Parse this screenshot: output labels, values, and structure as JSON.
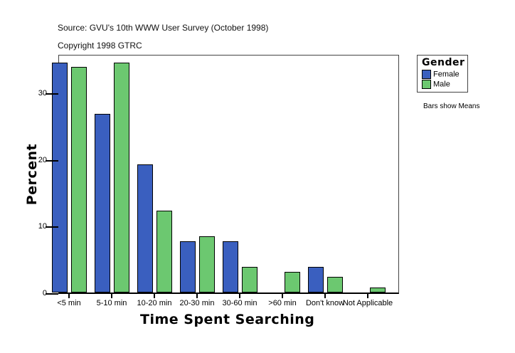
{
  "header": {
    "source": "Source: GVU's 10th WWW User Survey (October 1998)",
    "copyright": "Copyright 1998 GTRC"
  },
  "legend": {
    "title": "Gender",
    "items": [
      {
        "label": "Female",
        "color": "#3a5fbf"
      },
      {
        "label": "Male",
        "color": "#6cc870"
      }
    ]
  },
  "note": "Bars show Means",
  "axes": {
    "xlabel": "Time Spent Searching",
    "ylabel": "Percent",
    "yticks": [
      "0",
      "10",
      "20",
      "30"
    ]
  },
  "chart_data": {
    "type": "bar",
    "title": "",
    "xlabel": "Time Spent Searching",
    "ylabel": "Percent",
    "ylim": [
      0,
      35.8
    ],
    "categories": [
      "<5 min",
      "5-10 min",
      "10-20 min",
      "20-30 min",
      "30-60 min",
      ">60 min",
      "Don't know",
      "Not Applicable"
    ],
    "series": [
      {
        "name": "Female",
        "color": "#3a5fbf",
        "values": [
          34.5,
          26.8,
          19.2,
          7.7,
          7.7,
          0,
          3.8,
          0
        ]
      },
      {
        "name": "Male",
        "color": "#6cc870",
        "values": [
          33.8,
          34.5,
          12.3,
          8.4,
          3.8,
          3.1,
          2.3,
          0.7
        ]
      }
    ],
    "legend_position": "right",
    "grid": false
  }
}
